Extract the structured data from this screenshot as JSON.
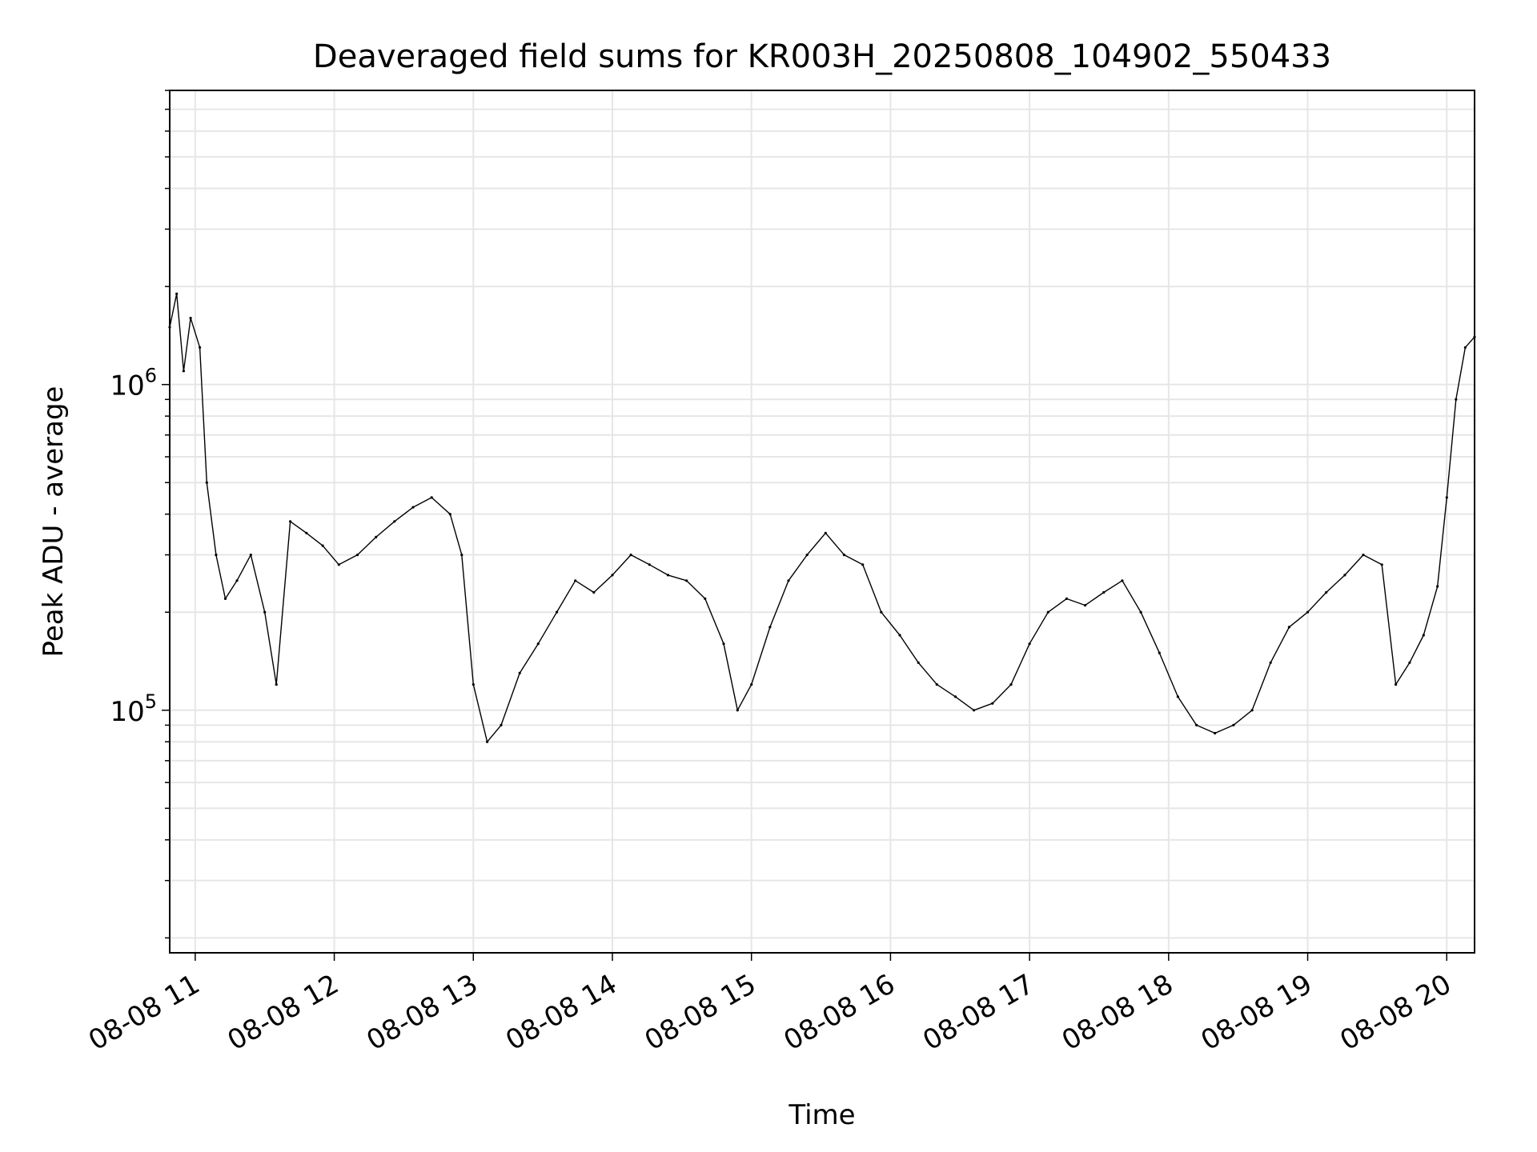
{
  "chart_data": {
    "type": "line",
    "title": "Deaveraged field sums for KR003H_20250808_104902_550433",
    "xlabel": "Time",
    "ylabel": "Peak ADU - average",
    "y_scale": "log",
    "ylim": [
      18000,
      8000000
    ],
    "xlim": [
      "2025-08-08 10:49",
      "2025-08-08 20:12"
    ],
    "grid": true,
    "line_color": "#000000",
    "grid_color": "#e6e6e6",
    "x_ticks": [
      {
        "time": "2025-08-08 11:00",
        "label": "08-08 11"
      },
      {
        "time": "2025-08-08 12:00",
        "label": "08-08 12"
      },
      {
        "time": "2025-08-08 13:00",
        "label": "08-08 13"
      },
      {
        "time": "2025-08-08 14:00",
        "label": "08-08 14"
      },
      {
        "time": "2025-08-08 15:00",
        "label": "08-08 15"
      },
      {
        "time": "2025-08-08 16:00",
        "label": "08-08 16"
      },
      {
        "time": "2025-08-08 17:00",
        "label": "08-08 17"
      },
      {
        "time": "2025-08-08 18:00",
        "label": "08-08 18"
      },
      {
        "time": "2025-08-08 19:00",
        "label": "08-08 19"
      },
      {
        "time": "2025-08-08 20:00",
        "label": "08-08 20"
      }
    ],
    "y_major_ticks": [
      {
        "value": 100000,
        "base": "10",
        "exp": "5"
      },
      {
        "value": 1000000,
        "base": "10",
        "exp": "6"
      }
    ],
    "series": [
      {
        "values": [
          [
            "2025-08-08 10:49",
            1500000
          ],
          [
            "2025-08-08 10:52",
            1900000
          ],
          [
            "2025-08-08 10:55",
            1100000
          ],
          [
            "2025-08-08 10:58",
            1600000
          ],
          [
            "2025-08-08 11:02",
            1300000
          ],
          [
            "2025-08-08 11:05",
            500000
          ],
          [
            "2025-08-08 11:09",
            300000
          ],
          [
            "2025-08-08 11:13",
            220000
          ],
          [
            "2025-08-08 11:18",
            250000
          ],
          [
            "2025-08-08 11:24",
            300000
          ],
          [
            "2025-08-08 11:30",
            200000
          ],
          [
            "2025-08-08 11:35",
            120000
          ],
          [
            "2025-08-08 11:41",
            380000
          ],
          [
            "2025-08-08 11:48",
            350000
          ],
          [
            "2025-08-08 11:55",
            320000
          ],
          [
            "2025-08-08 12:02",
            280000
          ],
          [
            "2025-08-08 12:10",
            300000
          ],
          [
            "2025-08-08 12:18",
            340000
          ],
          [
            "2025-08-08 12:26",
            380000
          ],
          [
            "2025-08-08 12:34",
            420000
          ],
          [
            "2025-08-08 12:42",
            450000
          ],
          [
            "2025-08-08 12:50",
            400000
          ],
          [
            "2025-08-08 12:55",
            300000
          ],
          [
            "2025-08-08 13:00",
            120000
          ],
          [
            "2025-08-08 13:06",
            80000
          ],
          [
            "2025-08-08 13:12",
            90000
          ],
          [
            "2025-08-08 13:20",
            130000
          ],
          [
            "2025-08-08 13:28",
            160000
          ],
          [
            "2025-08-08 13:36",
            200000
          ],
          [
            "2025-08-08 13:44",
            250000
          ],
          [
            "2025-08-08 13:52",
            230000
          ],
          [
            "2025-08-08 14:00",
            260000
          ],
          [
            "2025-08-08 14:08",
            300000
          ],
          [
            "2025-08-08 14:16",
            280000
          ],
          [
            "2025-08-08 14:24",
            260000
          ],
          [
            "2025-08-08 14:32",
            250000
          ],
          [
            "2025-08-08 14:40",
            220000
          ],
          [
            "2025-08-08 14:48",
            160000
          ],
          [
            "2025-08-08 14:54",
            100000
          ],
          [
            "2025-08-08 15:00",
            120000
          ],
          [
            "2025-08-08 15:08",
            180000
          ],
          [
            "2025-08-08 15:16",
            250000
          ],
          [
            "2025-08-08 15:24",
            300000
          ],
          [
            "2025-08-08 15:32",
            350000
          ],
          [
            "2025-08-08 15:40",
            300000
          ],
          [
            "2025-08-08 15:48",
            280000
          ],
          [
            "2025-08-08 15:56",
            200000
          ],
          [
            "2025-08-08 16:04",
            170000
          ],
          [
            "2025-08-08 16:12",
            140000
          ],
          [
            "2025-08-08 16:20",
            120000
          ],
          [
            "2025-08-08 16:28",
            110000
          ],
          [
            "2025-08-08 16:36",
            100000
          ],
          [
            "2025-08-08 16:44",
            105000
          ],
          [
            "2025-08-08 16:52",
            120000
          ],
          [
            "2025-08-08 17:00",
            160000
          ],
          [
            "2025-08-08 17:08",
            200000
          ],
          [
            "2025-08-08 17:16",
            220000
          ],
          [
            "2025-08-08 17:24",
            210000
          ],
          [
            "2025-08-08 17:32",
            230000
          ],
          [
            "2025-08-08 17:40",
            250000
          ],
          [
            "2025-08-08 17:48",
            200000
          ],
          [
            "2025-08-08 17:56",
            150000
          ],
          [
            "2025-08-08 18:04",
            110000
          ],
          [
            "2025-08-08 18:12",
            90000
          ],
          [
            "2025-08-08 18:20",
            85000
          ],
          [
            "2025-08-08 18:28",
            90000
          ],
          [
            "2025-08-08 18:36",
            100000
          ],
          [
            "2025-08-08 18:44",
            140000
          ],
          [
            "2025-08-08 18:52",
            180000
          ],
          [
            "2025-08-08 19:00",
            200000
          ],
          [
            "2025-08-08 19:08",
            230000
          ],
          [
            "2025-08-08 19:16",
            260000
          ],
          [
            "2025-08-08 19:24",
            300000
          ],
          [
            "2025-08-08 19:32",
            280000
          ],
          [
            "2025-08-08 19:38",
            120000
          ],
          [
            "2025-08-08 19:44",
            140000
          ],
          [
            "2025-08-08 19:50",
            170000
          ],
          [
            "2025-08-08 19:56",
            240000
          ],
          [
            "2025-08-08 20:00",
            450000
          ],
          [
            "2025-08-08 20:04",
            900000
          ],
          [
            "2025-08-08 20:08",
            1300000
          ],
          [
            "2025-08-08 20:12",
            1400000
          ]
        ]
      }
    ]
  }
}
